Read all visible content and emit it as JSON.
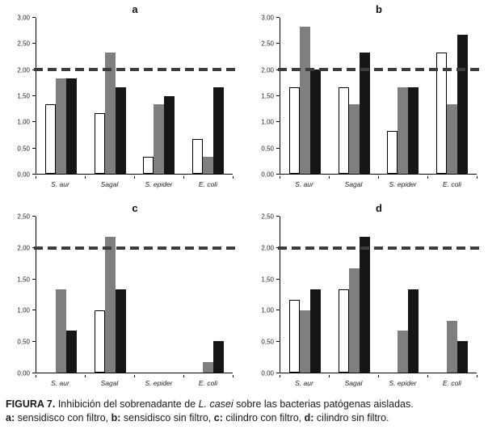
{
  "figure": {
    "caption": {
      "lines": [
        [
          {
            "text": "FIGURA 7.",
            "bold": true
          },
          {
            "text": " Inhibición del sobrenadante de "
          },
          {
            "text": "L. casei",
            "italic": true
          },
          {
            "text": " sobre las bacterias patógenas aisladas."
          }
        ],
        [
          {
            "text": "a:",
            "bold": true
          },
          {
            "text": " sensidisco con filtro, "
          },
          {
            "text": "b:",
            "bold": true
          },
          {
            "text": " sensidisco sin filtro, "
          },
          {
            "text": "c:",
            "bold": true
          },
          {
            "text": " cilindro con filtro, "
          },
          {
            "text": "d:",
            "bold": true
          },
          {
            "text": " cilindro sin filtro."
          }
        ]
      ]
    }
  },
  "colors": {
    "bar_white": "#ffffff",
    "bar_gray": "#7f7f7f",
    "bar_black": "#161616",
    "reference_line": "#3c3c3c",
    "axis": "#000000"
  },
  "chart_data": [
    {
      "type": "bar",
      "panel": "a",
      "title": "a",
      "xlabel": "",
      "ylabel": "",
      "grid": false,
      "legend": "none",
      "categories": [
        "S. aur",
        "Sagal",
        "S. epider",
        "E. coli"
      ],
      "series": [
        {
          "name": "blanco",
          "color": "#ffffff",
          "border": "#000000",
          "values": [
            1.33,
            1.17,
            0.33,
            0.67
          ]
        },
        {
          "name": "gris",
          "color": "#7f7f7f",
          "values": [
            1.83,
            2.33,
            1.33,
            0.33
          ]
        },
        {
          "name": "negro",
          "color": "#161616",
          "values": [
            1.83,
            1.67,
            1.5,
            1.67
          ]
        }
      ],
      "ylim": [
        0,
        3.0
      ],
      "yticks": [
        "0,00",
        "0,50",
        "1,00",
        "1,50",
        "2,00",
        "2,50",
        "3,00"
      ],
      "reference_line": 2.0
    },
    {
      "type": "bar",
      "panel": "b",
      "title": "b",
      "xlabel": "",
      "ylabel": "",
      "grid": false,
      "legend": "none",
      "categories": [
        "S. aur",
        "Sagal",
        "S. epider",
        "E. coli"
      ],
      "series": [
        {
          "name": "blanco",
          "color": "#ffffff",
          "border": "#000000",
          "values": [
            1.67,
            1.67,
            0.83,
            2.33
          ]
        },
        {
          "name": "gris",
          "color": "#7f7f7f",
          "values": [
            2.83,
            1.33,
            1.67,
            1.33
          ]
        },
        {
          "name": "negro",
          "color": "#161616",
          "values": [
            2.0,
            2.33,
            1.67,
            2.67
          ]
        }
      ],
      "ylim": [
        0,
        3.0
      ],
      "yticks": [
        "0,00",
        "0,50",
        "1,00",
        "1,50",
        "2,00",
        "2,50",
        "3,00"
      ],
      "reference_line": 2.0
    },
    {
      "type": "bar",
      "panel": "c",
      "title": "c",
      "xlabel": "",
      "ylabel": "",
      "grid": false,
      "legend": "none",
      "categories": [
        "S. aur",
        "Sagal",
        "S. epider",
        "E. coli"
      ],
      "series": [
        {
          "name": "blanco",
          "color": "#ffffff",
          "border": "#000000",
          "values": [
            0,
            1.0,
            0,
            0
          ]
        },
        {
          "name": "gris",
          "color": "#7f7f7f",
          "values": [
            1.33,
            2.17,
            0,
            0.17
          ]
        },
        {
          "name": "negro",
          "color": "#161616",
          "values": [
            0.67,
            1.33,
            0,
            0.5
          ]
        }
      ],
      "ylim": [
        0,
        2.5
      ],
      "yticks": [
        "0,00",
        "0,50",
        "1,00",
        "1,50",
        "2,00",
        "2,50"
      ],
      "reference_line": 2.0
    },
    {
      "type": "bar",
      "panel": "d",
      "title": "d",
      "xlabel": "",
      "ylabel": "",
      "grid": false,
      "legend": "none",
      "categories": [
        "S. aur",
        "Sagal",
        "S. epider",
        "E. coli"
      ],
      "series": [
        {
          "name": "blanco",
          "color": "#ffffff",
          "border": "#000000",
          "values": [
            1.17,
            1.33,
            0,
            0
          ]
        },
        {
          "name": "gris",
          "color": "#7f7f7f",
          "values": [
            1.0,
            1.67,
            0.67,
            0.83
          ]
        },
        {
          "name": "negro",
          "color": "#161616",
          "values": [
            1.33,
            2.17,
            1.33,
            0.5
          ]
        }
      ],
      "ylim": [
        0,
        2.5
      ],
      "yticks": [
        "0,00",
        "0,50",
        "1,00",
        "1,50",
        "2,00",
        "2,50"
      ],
      "reference_line": 2.0
    }
  ]
}
